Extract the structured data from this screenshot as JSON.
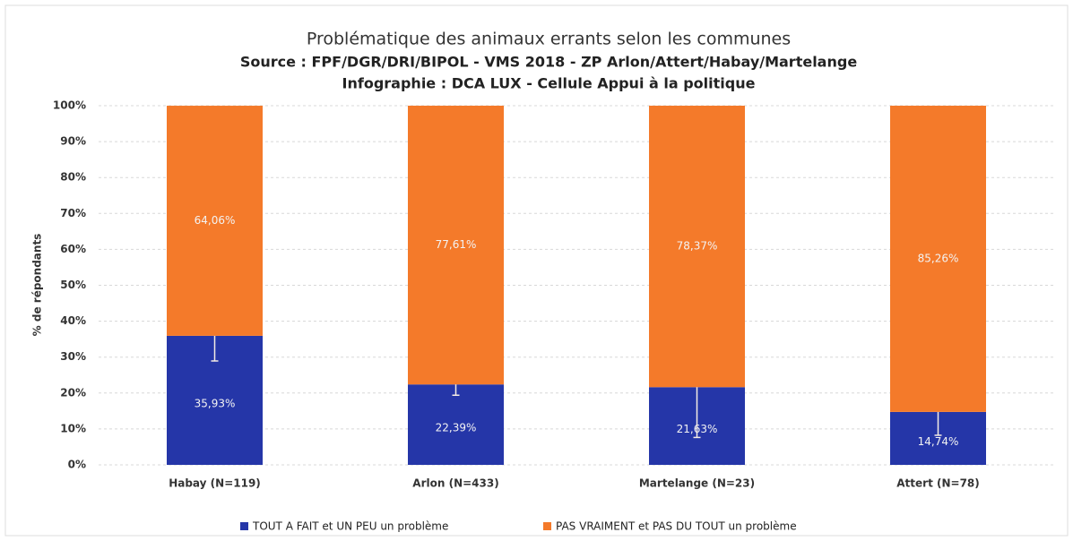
{
  "chart_data": {
    "type": "stacked_bar",
    "title": "Problématique des animaux errants selon les communes",
    "subtitles": [
      "Source : FPF/DGR/DRI/BIPOL - VMS 2018 - ZP Arlon/Attert/Habay/Martelange",
      "Infographie : DCA LUX - Cellule Appui à la politique"
    ],
    "ylabel": "% de répondants",
    "categories": [
      "Habay (N=119)",
      "Arlon (N=433)",
      "Martelange (N=23)",
      "Attert (N=78)"
    ],
    "series": [
      {
        "name": "TOUT A FAIT et UN PEU un problème",
        "color": "#2536a8",
        "values": [
          35.93,
          22.39,
          21.63,
          14.74
        ],
        "value_labels": [
          "35,93%",
          "22,39%",
          "21,63%",
          "14,74%"
        ],
        "errors": [
          7,
          3,
          14,
          6.5
        ]
      },
      {
        "name": "PAS VRAIMENT et PAS DU TOUT un problème",
        "color": "#f47a2a",
        "values": [
          64.06,
          77.61,
          78.37,
          85.26
        ],
        "value_labels": [
          "64,06%",
          "77,61%",
          "78,37%",
          "85,26%"
        ]
      }
    ],
    "ylim": [
      0,
      100
    ],
    "yticks": [
      {
        "value": 0,
        "label": "0%"
      },
      {
        "value": 10,
        "label": "10%"
      },
      {
        "value": 20,
        "label": "20%"
      },
      {
        "value": 30,
        "label": "30%"
      },
      {
        "value": 40,
        "label": "40%"
      },
      {
        "value": 50,
        "label": "50%"
      },
      {
        "value": 60,
        "label": "60%"
      },
      {
        "value": 70,
        "label": "70%"
      },
      {
        "value": 80,
        "label": "80%"
      },
      {
        "value": 90,
        "label": "90%"
      },
      {
        "value": 100,
        "label": "100%"
      }
    ],
    "grid": true,
    "legend": "bottom"
  }
}
